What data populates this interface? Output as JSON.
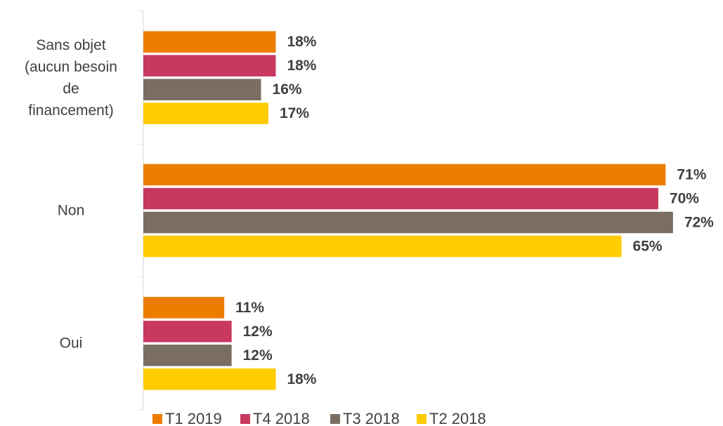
{
  "chart_data": {
    "type": "bar",
    "orientation": "horizontal",
    "categories": [
      "Sans objet (aucun besoin de financement)",
      "Non",
      "Oui"
    ],
    "series": [
      {
        "name": "T1 2019",
        "color": "#ED7D00",
        "values": [
          18,
          71,
          11
        ],
        "value_labels": [
          "18%",
          "71%",
          "11%"
        ]
      },
      {
        "name": "T4 2018",
        "color": "#C8385F",
        "values": [
          18,
          70,
          12
        ],
        "value_labels": [
          "18%",
          "70%",
          "12%"
        ]
      },
      {
        "name": "T3 2018",
        "color": "#7A6E63",
        "values": [
          16,
          72,
          12
        ],
        "value_labels": [
          "16%",
          "72%",
          "12%"
        ]
      },
      {
        "name": "T2 2018",
        "color": "#FFCC00",
        "values": [
          17,
          65,
          18
        ],
        "value_labels": [
          "17%",
          "65%",
          "18%"
        ]
      }
    ],
    "legend": "bottom"
  }
}
